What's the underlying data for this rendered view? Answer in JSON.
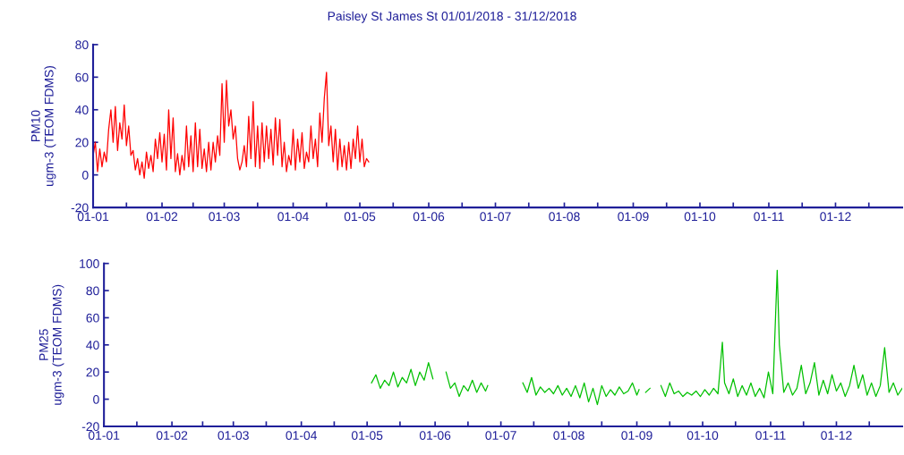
{
  "chart_data": [
    {
      "type": "line",
      "title": "Paisley St James St 01/01/2018 - 31/12/2018",
      "ylabel": "PM10\nugm-3 (TEOM FDMS)",
      "xlim": [
        "2018-01-01",
        "2018-12-31"
      ],
      "xticks": [
        {
          "value": "2018-01-01",
          "label": "01-01"
        },
        {
          "value": "2018-01-16",
          "label": null
        },
        {
          "value": "2018-02-01",
          "label": "01-02"
        },
        {
          "value": "2018-02-15",
          "label": null
        },
        {
          "value": "2018-03-01",
          "label": "01-03"
        },
        {
          "value": "2018-03-16",
          "label": null
        },
        {
          "value": "2018-04-01",
          "label": "01-04"
        },
        {
          "value": "2018-04-16",
          "label": null
        },
        {
          "value": "2018-05-01",
          "label": "01-05"
        },
        {
          "value": "2018-05-16",
          "label": null
        },
        {
          "value": "2018-06-01",
          "label": "01-06"
        },
        {
          "value": "2018-06-16",
          "label": null
        },
        {
          "value": "2018-07-01",
          "label": "01-07"
        },
        {
          "value": "2018-07-16",
          "label": null
        },
        {
          "value": "2018-08-01",
          "label": "01-08"
        },
        {
          "value": "2018-08-16",
          "label": null
        },
        {
          "value": "2018-09-01",
          "label": "01-09"
        },
        {
          "value": "2018-09-16",
          "label": null
        },
        {
          "value": "2018-10-01",
          "label": "01-10"
        },
        {
          "value": "2018-10-16",
          "label": null
        },
        {
          "value": "2018-11-01",
          "label": "01-11"
        },
        {
          "value": "2018-11-16",
          "label": null
        },
        {
          "value": "2018-12-01",
          "label": "01-12"
        },
        {
          "value": "2018-12-16",
          "label": null
        }
      ],
      "ylim": [
        -20,
        80
      ],
      "yticks": [
        -20,
        0,
        20,
        40,
        60,
        80
      ],
      "x": [
        "2018-01-01",
        "2018-01-02",
        "2018-01-03",
        "2018-01-04",
        "2018-01-05",
        "2018-01-06",
        "2018-01-07",
        "2018-01-08",
        "2018-01-09",
        "2018-01-10",
        "2018-01-11",
        "2018-01-12",
        "2018-01-13",
        "2018-01-14",
        "2018-01-15",
        "2018-01-16",
        "2018-01-17",
        "2018-01-18",
        "2018-01-19",
        "2018-01-20",
        "2018-01-21",
        "2018-01-22",
        "2018-01-23",
        "2018-01-24",
        "2018-01-25",
        "2018-01-26",
        "2018-01-27",
        "2018-01-28",
        "2018-01-29",
        "2018-01-30",
        "2018-01-31",
        "2018-02-01",
        "2018-02-02",
        "2018-02-03",
        "2018-02-04",
        "2018-02-05",
        "2018-02-06",
        "2018-02-07",
        "2018-02-08",
        "2018-02-09",
        "2018-02-10",
        "2018-02-11",
        "2018-02-12",
        "2018-02-13",
        "2018-02-14",
        "2018-02-15",
        "2018-02-16",
        "2018-02-17",
        "2018-02-18",
        "2018-02-19",
        "2018-02-20",
        "2018-02-21",
        "2018-02-22",
        "2018-02-23",
        "2018-02-24",
        "2018-02-25",
        "2018-02-26",
        "2018-02-27",
        "2018-02-28",
        "2018-03-01",
        "2018-03-02",
        "2018-03-03",
        "2018-03-04",
        "2018-03-05",
        "2018-03-06",
        "2018-03-07",
        "2018-03-08",
        "2018-03-09",
        "2018-03-10",
        "2018-03-11",
        "2018-03-12",
        "2018-03-13",
        "2018-03-14",
        "2018-03-15",
        "2018-03-16",
        "2018-03-17",
        "2018-03-18",
        "2018-03-19",
        "2018-03-20",
        "2018-03-21",
        "2018-03-22",
        "2018-03-23",
        "2018-03-24",
        "2018-03-25",
        "2018-03-26",
        "2018-03-27",
        "2018-03-28",
        "2018-03-29",
        "2018-03-30",
        "2018-03-31",
        "2018-04-01",
        "2018-04-02",
        "2018-04-03",
        "2018-04-04",
        "2018-04-05",
        "2018-04-06",
        "2018-04-07",
        "2018-04-08",
        "2018-04-09",
        "2018-04-10",
        "2018-04-11",
        "2018-04-12",
        "2018-04-13",
        "2018-04-14",
        "2018-04-15",
        "2018-04-16",
        "2018-04-17",
        "2018-04-18",
        "2018-04-19",
        "2018-04-20",
        "2018-04-21",
        "2018-04-22",
        "2018-04-23",
        "2018-04-24",
        "2018-04-25",
        "2018-04-26",
        "2018-04-27",
        "2018-04-28",
        "2018-04-29",
        "2018-04-30",
        "2018-05-01",
        "2018-05-02",
        "2018-05-03",
        "2018-05-04",
        "2018-05-05"
      ],
      "series": [
        {
          "color": "#ff0000",
          "values": [
            12,
            20,
            2,
            16,
            5,
            14,
            8,
            28,
            40,
            20,
            42,
            15,
            32,
            22,
            43,
            18,
            30,
            12,
            15,
            3,
            10,
            0,
            8,
            -2,
            14,
            4,
            12,
            2,
            22,
            10,
            26,
            8,
            25,
            3,
            40,
            10,
            35,
            2,
            13,
            0,
            12,
            3,
            30,
            5,
            24,
            2,
            32,
            5,
            28,
            4,
            16,
            2,
            20,
            3,
            20,
            8,
            24,
            12,
            56,
            20,
            58,
            30,
            40,
            22,
            30,
            10,
            3,
            8,
            18,
            5,
            36,
            10,
            45,
            5,
            30,
            4,
            32,
            8,
            30,
            10,
            28,
            6,
            35,
            12,
            34,
            5,
            20,
            2,
            12,
            6,
            28,
            3,
            22,
            8,
            26,
            4,
            14,
            8,
            30,
            10,
            22,
            5,
            38,
            20,
            47,
            63,
            18,
            30,
            8,
            28,
            3,
            22,
            5,
            18,
            3,
            20,
            4,
            22,
            10,
            30,
            8,
            22,
            5,
            10,
            8
          ]
        }
      ]
    },
    {
      "type": "line",
      "ylabel": "PM25\nugm-3 (TEOM FDMS)",
      "xlim": [
        "2018-01-01",
        "2018-12-31"
      ],
      "xticks": [
        {
          "value": "2018-01-01",
          "label": "01-01"
        },
        {
          "value": "2018-01-16",
          "label": null
        },
        {
          "value": "2018-02-01",
          "label": "01-02"
        },
        {
          "value": "2018-02-15",
          "label": null
        },
        {
          "value": "2018-03-01",
          "label": "01-03"
        },
        {
          "value": "2018-03-16",
          "label": null
        },
        {
          "value": "2018-04-01",
          "label": "01-04"
        },
        {
          "value": "2018-04-16",
          "label": null
        },
        {
          "value": "2018-05-01",
          "label": "01-05"
        },
        {
          "value": "2018-05-16",
          "label": null
        },
        {
          "value": "2018-06-01",
          "label": "01-06"
        },
        {
          "value": "2018-06-16",
          "label": null
        },
        {
          "value": "2018-07-01",
          "label": "01-07"
        },
        {
          "value": "2018-07-16",
          "label": null
        },
        {
          "value": "2018-08-01",
          "label": "01-08"
        },
        {
          "value": "2018-08-16",
          "label": null
        },
        {
          "value": "2018-09-01",
          "label": "01-09"
        },
        {
          "value": "2018-09-16",
          "label": null
        },
        {
          "value": "2018-10-01",
          "label": "01-10"
        },
        {
          "value": "2018-10-16",
          "label": null
        },
        {
          "value": "2018-11-01",
          "label": "01-11"
        },
        {
          "value": "2018-11-16",
          "label": null
        },
        {
          "value": "2018-12-01",
          "label": "01-12"
        },
        {
          "value": "2018-12-16",
          "label": null
        }
      ],
      "ylim": [
        -20,
        100
      ],
      "yticks": [
        -20,
        0,
        20,
        40,
        60,
        80,
        100
      ],
      "x": [
        "2018-05-03",
        "2018-05-05",
        "2018-05-07",
        "2018-05-09",
        "2018-05-11",
        "2018-05-13",
        "2018-05-15",
        "2018-05-17",
        "2018-05-19",
        "2018-05-21",
        "2018-05-23",
        "2018-05-25",
        "2018-05-27",
        "2018-05-29",
        "2018-05-31",
        "2018-06-03",
        "2018-06-06",
        "2018-06-08",
        "2018-06-10",
        "2018-06-12",
        "2018-06-14",
        "2018-06-16",
        "2018-06-18",
        "2018-06-20",
        "2018-06-22",
        "2018-06-24",
        "2018-06-25",
        "2018-07-01",
        "2018-07-11",
        "2018-07-13",
        "2018-07-15",
        "2018-07-17",
        "2018-07-19",
        "2018-07-21",
        "2018-07-23",
        "2018-07-25",
        "2018-07-27",
        "2018-07-29",
        "2018-07-31",
        "2018-08-02",
        "2018-08-04",
        "2018-08-06",
        "2018-08-08",
        "2018-08-10",
        "2018-08-12",
        "2018-08-14",
        "2018-08-16",
        "2018-08-18",
        "2018-08-20",
        "2018-08-22",
        "2018-08-24",
        "2018-08-26",
        "2018-08-28",
        "2018-08-30",
        "2018-09-01",
        "2018-09-02",
        "2018-09-04",
        "2018-09-05",
        "2018-09-07",
        "2018-09-09",
        "2018-09-12",
        "2018-09-14",
        "2018-09-16",
        "2018-09-18",
        "2018-09-20",
        "2018-09-22",
        "2018-09-24",
        "2018-09-26",
        "2018-09-28",
        "2018-09-30",
        "2018-10-02",
        "2018-10-04",
        "2018-10-06",
        "2018-10-08",
        "2018-10-10",
        "2018-10-11",
        "2018-10-13",
        "2018-10-15",
        "2018-10-17",
        "2018-10-19",
        "2018-10-21",
        "2018-10-23",
        "2018-10-25",
        "2018-10-27",
        "2018-10-29",
        "2018-10-31",
        "2018-11-02",
        "2018-11-04",
        "2018-11-05",
        "2018-11-07",
        "2018-11-09",
        "2018-11-11",
        "2018-11-13",
        "2018-11-15",
        "2018-11-17",
        "2018-11-19",
        "2018-11-21",
        "2018-11-23",
        "2018-11-25",
        "2018-11-27",
        "2018-11-29",
        "2018-12-01",
        "2018-12-03",
        "2018-12-05",
        "2018-12-07",
        "2018-12-09",
        "2018-12-11",
        "2018-12-13",
        "2018-12-15",
        "2018-12-17",
        "2018-12-19",
        "2018-12-21",
        "2018-12-23",
        "2018-12-25",
        "2018-12-27",
        "2018-12-29",
        "2018-12-31"
      ],
      "series": [
        {
          "color": "#00c000",
          "values": [
            12,
            18,
            8,
            14,
            10,
            20,
            9,
            16,
            12,
            22,
            10,
            20,
            14,
            27,
            15,
            null,
            20,
            8,
            12,
            2,
            10,
            6,
            14,
            5,
            12,
            6,
            10,
            null,
            12,
            5,
            16,
            3,
            9,
            5,
            8,
            4,
            10,
            3,
            8,
            2,
            10,
            1,
            12,
            -2,
            8,
            -4,
            10,
            2,
            7,
            3,
            9,
            4,
            6,
            12,
            3,
            7,
            null,
            5,
            8,
            null,
            10,
            2,
            12,
            4,
            6,
            2,
            5,
            3,
            6,
            2,
            7,
            3,
            8,
            4,
            42,
            12,
            4,
            15,
            2,
            10,
            3,
            12,
            2,
            8,
            1,
            20,
            4,
            95,
            40,
            5,
            12,
            3,
            8,
            25,
            4,
            12,
            27,
            3,
            14,
            4,
            18,
            6,
            12,
            2,
            10,
            25,
            8,
            18,
            3,
            12,
            2,
            10,
            38,
            5,
            12,
            3,
            8
          ]
        }
      ]
    }
  ]
}
